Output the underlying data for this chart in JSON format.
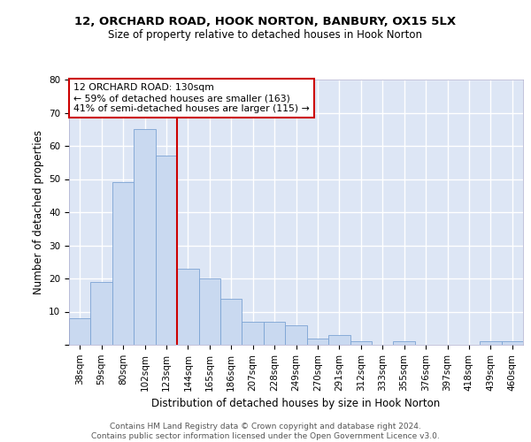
{
  "title1": "12, ORCHARD ROAD, HOOK NORTON, BANBURY, OX15 5LX",
  "title2": "Size of property relative to detached houses in Hook Norton",
  "xlabel": "Distribution of detached houses by size in Hook Norton",
  "ylabel": "Number of detached properties",
  "categories": [
    "38sqm",
    "59sqm",
    "80sqm",
    "102sqm",
    "123sqm",
    "144sqm",
    "165sqm",
    "186sqm",
    "207sqm",
    "228sqm",
    "249sqm",
    "270sqm",
    "291sqm",
    "312sqm",
    "333sqm",
    "355sqm",
    "376sqm",
    "397sqm",
    "418sqm",
    "439sqm",
    "460sqm"
  ],
  "values": [
    8,
    19,
    49,
    65,
    57,
    23,
    20,
    14,
    7,
    7,
    6,
    2,
    3,
    1,
    0,
    1,
    0,
    0,
    0,
    1,
    1
  ],
  "bar_color": "#c9d9f0",
  "bar_edge_color": "#7ba3d4",
  "annotation_text": "12 ORCHARD ROAD: 130sqm\n← 59% of detached houses are smaller (163)\n41% of semi-detached houses are larger (115) →",
  "vline_index": 4.5,
  "vline_color": "#cc0000",
  "annotation_box_color": "#ffffff",
  "annotation_box_edge_color": "#cc0000",
  "footer_text": "Contains HM Land Registry data © Crown copyright and database right 2024.\nContains public sector information licensed under the Open Government Licence v3.0.",
  "ylim": [
    0,
    80
  ],
  "yticks": [
    0,
    10,
    20,
    30,
    40,
    50,
    60,
    70,
    80
  ],
  "bg_color": "#dde6f5",
  "grid_color": "#ffffff",
  "title1_fontsize": 9.5,
  "title2_fontsize": 8.5,
  "ylabel_fontsize": 8.5,
  "xlabel_fontsize": 8.5,
  "tick_fontsize": 7.5,
  "footer_fontsize": 6.5,
  "annotation_fontsize": 7.8
}
